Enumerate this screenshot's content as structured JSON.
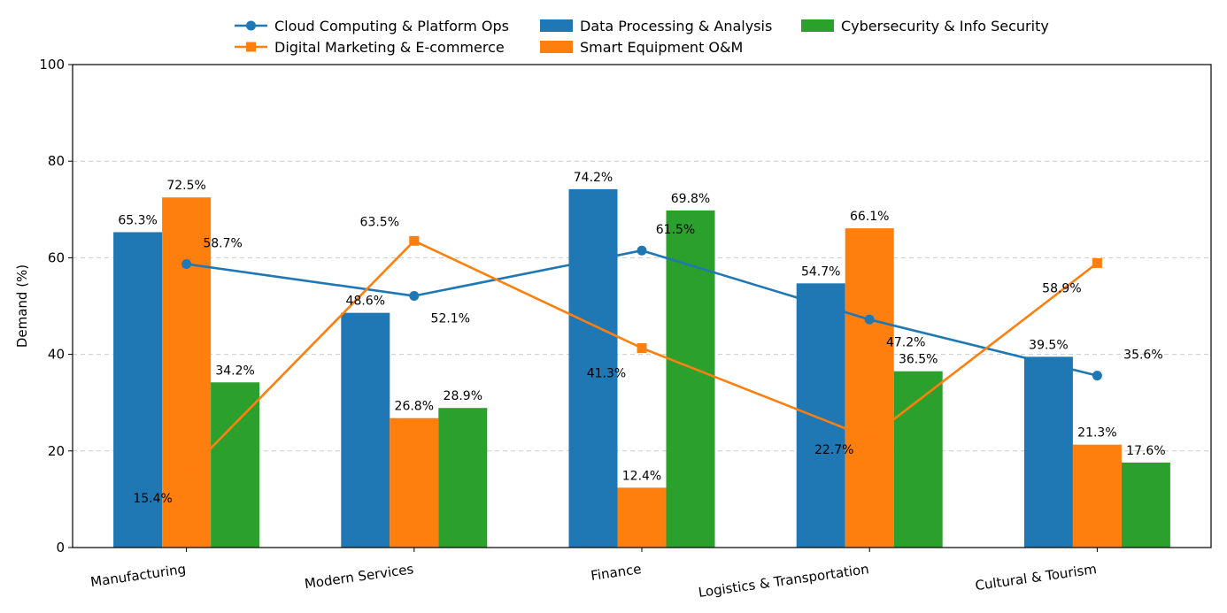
{
  "chart_data": {
    "type": "bar",
    "ylabel": "Demand (%)",
    "xlabel": "",
    "ylim": [
      0,
      100
    ],
    "yticks": [
      0,
      20,
      40,
      60,
      80,
      100
    ],
    "grid": "horizontal dashed",
    "legend_position": "top-center",
    "categories": [
      "Manufacturing",
      "Modern Services",
      "Finance",
      "Logistics & Transportation",
      "Cultural & Tourism"
    ],
    "bar_series": [
      {
        "name": "Data Processing & Analysis",
        "color": "#1f77b4",
        "values": [
          65.3,
          48.6,
          74.2,
          54.7,
          39.5
        ],
        "labels": [
          "65.3%",
          "48.6%",
          "74.2%",
          "54.7%",
          "39.5%"
        ]
      },
      {
        "name": "Smart Equipment O&M",
        "color": "#ff7f0e",
        "values": [
          72.5,
          26.8,
          12.4,
          66.1,
          21.3
        ],
        "labels": [
          "72.5%",
          "26.8%",
          "12.4%",
          "66.1%",
          "21.3%"
        ]
      },
      {
        "name": "Cybersecurity & Info Security",
        "color": "#2ca02c",
        "values": [
          34.2,
          28.9,
          69.8,
          36.5,
          17.6
        ],
        "labels": [
          "34.2%",
          "28.9%",
          "69.8%",
          "36.5%",
          "17.6%"
        ]
      }
    ],
    "line_series": [
      {
        "name": "Cloud Computing & Platform Ops",
        "color": "#1f77b4",
        "marker": "circle",
        "values": [
          58.7,
          52.1,
          61.5,
          47.2,
          35.6
        ],
        "labels": [
          "58.7%",
          "52.1%",
          "61.5%",
          "47.2%",
          "35.6%"
        ]
      },
      {
        "name": "Digital Marketing & E-commerce",
        "color": "#ff7f0e",
        "marker": "square",
        "values": [
          15.4,
          63.5,
          41.3,
          22.7,
          58.9
        ],
        "labels": [
          "15.4%",
          "63.5%",
          "41.3%",
          "22.7%",
          "58.9%"
        ]
      }
    ]
  }
}
